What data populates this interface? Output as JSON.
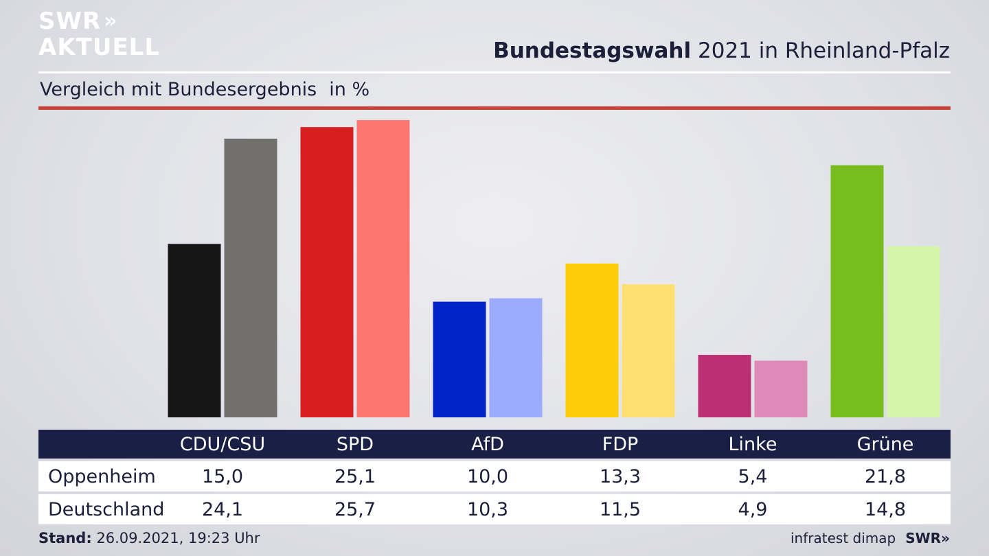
{
  "logo": {
    "line1": "SWR",
    "chevrons": "»",
    "line2": "AKTUELL"
  },
  "header": {
    "title_bold": "Bundestagswahl",
    "title_rest": "2021 in Rheinland-Pfalz"
  },
  "subtitle": {
    "text": "Vergleich mit Bundesergebnis",
    "unit": "in %"
  },
  "chart_data": {
    "type": "bar",
    "categories": [
      "CDU/CSU",
      "SPD",
      "AfD",
      "FDP",
      "Linke",
      "Grüne"
    ],
    "series": [
      {
        "name": "Oppenheim",
        "values": [
          15.0,
          25.1,
          10.0,
          13.3,
          5.4,
          21.8
        ],
        "colors": [
          "#151515",
          "#d71f1f",
          "#0024c8",
          "#ffcc0c",
          "#bd2f74",
          "#77bd1d"
        ]
      },
      {
        "name": "Deutschland",
        "values": [
          24.1,
          25.7,
          10.3,
          11.5,
          4.9,
          14.8
        ],
        "colors": [
          "#72706d",
          "#ff7570",
          "#9dabff",
          "#ffdf71",
          "#df89b8",
          "#d5f6aa"
        ]
      }
    ],
    "ylim": [
      0,
      26
    ]
  },
  "table": {
    "header": [
      "CDU/CSU",
      "SPD",
      "AfD",
      "FDP",
      "Linke",
      "Grüne"
    ],
    "rows": [
      {
        "label": "Oppenheim",
        "values": [
          "15,0",
          "25,1",
          "10,0",
          "13,3",
          "5,4",
          "21,8"
        ]
      },
      {
        "label": "Deutschland",
        "values": [
          "24,1",
          "25,7",
          "10,3",
          "11,5",
          "4,9",
          "14,8"
        ]
      }
    ]
  },
  "footer": {
    "stand_label": "Stand:",
    "stand_value": "26.09.2021, 19:23 Uhr",
    "source": "infratest dimap",
    "brand": "SWR»"
  }
}
